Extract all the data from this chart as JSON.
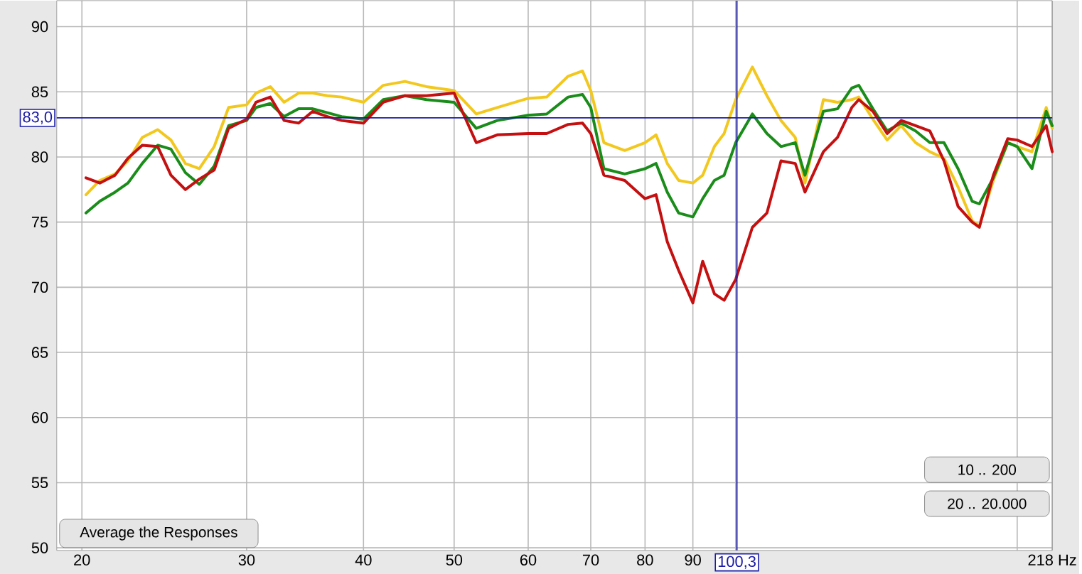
{
  "chart_data": {
    "type": "line",
    "x": [
      20.2,
      20.9,
      21.7,
      22.4,
      23.2,
      24.1,
      24.9,
      25.8,
      26.7,
      27.7,
      28.7,
      30,
      30.7,
      31.8,
      32.9,
      34.1,
      35.3,
      36.6,
      37.9,
      40,
      42,
      44.3,
      46.7,
      50,
      52.8,
      55.6,
      60,
      62.8,
      66.2,
      68.6,
      70,
      72.3,
      76.1,
      80,
      82.2,
      84.5,
      86.9,
      90,
      92.2,
      94.9,
      97.2,
      100,
      104.2,
      108,
      111.8,
      115.8,
      118.6,
      124.1,
      128.5,
      133.1,
      135.4,
      140.2,
      145.2,
      150.3,
      155.7,
      161.3,
      167,
      172.9,
      179,
      182.2,
      188.6,
      195.4,
      200,
      207.4,
      214.8,
      218
    ],
    "series": [
      {
        "color": "#f2c81e",
        "values": [
          77.1,
          78.2,
          78.7,
          79.7,
          81.5,
          82.1,
          81.3,
          79.5,
          79.1,
          80.8,
          83.8,
          84.0,
          84.9,
          85.4,
          84.2,
          84.9,
          84.9,
          84.7,
          84.6,
          84.2,
          85.5,
          85.8,
          85.4,
          85.1,
          83.3,
          83.8,
          84.5,
          84.6,
          86.2,
          86.6,
          85.1,
          81.1,
          80.5,
          81.1,
          81.7,
          79.5,
          78.2,
          78.0,
          78.6,
          80.8,
          81.8,
          84.4,
          86.9,
          84.7,
          82.8,
          81.5,
          78.0,
          84.4,
          84.2,
          84.4,
          84.6,
          82.9,
          81.3,
          82.4,
          81.1,
          80.4,
          79.9,
          77.7,
          75.1,
          74.7,
          78.2,
          81.1,
          80.8,
          80.4,
          83.8,
          82.2
        ]
      },
      {
        "color": "#1a8c1a",
        "values": [
          75.7,
          76.6,
          77.3,
          78.0,
          79.5,
          80.9,
          80.6,
          78.8,
          77.9,
          79.3,
          82.4,
          82.8,
          83.8,
          84.1,
          83.1,
          83.7,
          83.7,
          83.4,
          83.1,
          82.9,
          84.4,
          84.7,
          84.4,
          84.2,
          82.2,
          82.8,
          83.2,
          83.3,
          84.6,
          84.8,
          83.8,
          79.1,
          78.7,
          79.1,
          79.5,
          77.3,
          75.7,
          75.4,
          76.8,
          78.2,
          78.6,
          81.1,
          83.3,
          81.8,
          80.8,
          81.1,
          78.6,
          83.5,
          83.7,
          85.3,
          85.5,
          83.7,
          82.0,
          82.6,
          82.0,
          81.1,
          81.1,
          79.1,
          76.6,
          76.4,
          78.4,
          81.1,
          80.8,
          79.1,
          83.5,
          82.4
        ]
      },
      {
        "color": "#c41010",
        "values": [
          78.4,
          78.0,
          78.6,
          79.9,
          80.9,
          80.8,
          78.6,
          77.5,
          78.3,
          79.0,
          82.2,
          82.9,
          84.2,
          84.6,
          82.8,
          82.6,
          83.5,
          83.1,
          82.8,
          82.6,
          84.2,
          84.7,
          84.7,
          84.9,
          81.1,
          81.7,
          81.8,
          81.8,
          82.5,
          82.6,
          81.8,
          78.6,
          78.2,
          76.8,
          77.1,
          73.5,
          71.3,
          68.8,
          72.0,
          69.5,
          69.0,
          70.6,
          74.6,
          75.7,
          79.7,
          79.5,
          77.3,
          80.4,
          81.5,
          83.8,
          84.4,
          83.5,
          81.8,
          82.8,
          82.4,
          82.0,
          79.7,
          76.2,
          75.0,
          74.6,
          78.6,
          81.4,
          81.3,
          80.8,
          82.4,
          80.4
        ]
      }
    ],
    "log": "x",
    "xlim": [
      18.8,
      218
    ],
    "xticks": [
      20,
      30,
      40,
      50,
      60,
      70,
      80,
      90,
      {
        "value": 100,
        "label": null
      },
      {
        "value": 200,
        "label": null
      },
      {
        "value": 218,
        "label": "218 Hz"
      }
    ],
    "ylim": [
      49.8,
      92
    ],
    "yticks": [
      50,
      55,
      60,
      65,
      70,
      75,
      80,
      85,
      90
    ],
    "grid": true,
    "ref_lines": [
      {
        "axis": "y",
        "value": 83,
        "label": "83,0",
        "color": "#1c1ca8"
      },
      {
        "axis": "x",
        "value": 100.3,
        "label": "100,3",
        "color": "#1c1ca8"
      }
    ],
    "annotations": [
      "Average the Responses",
      "10 .. 200",
      "20 .. 20.000"
    ]
  }
}
